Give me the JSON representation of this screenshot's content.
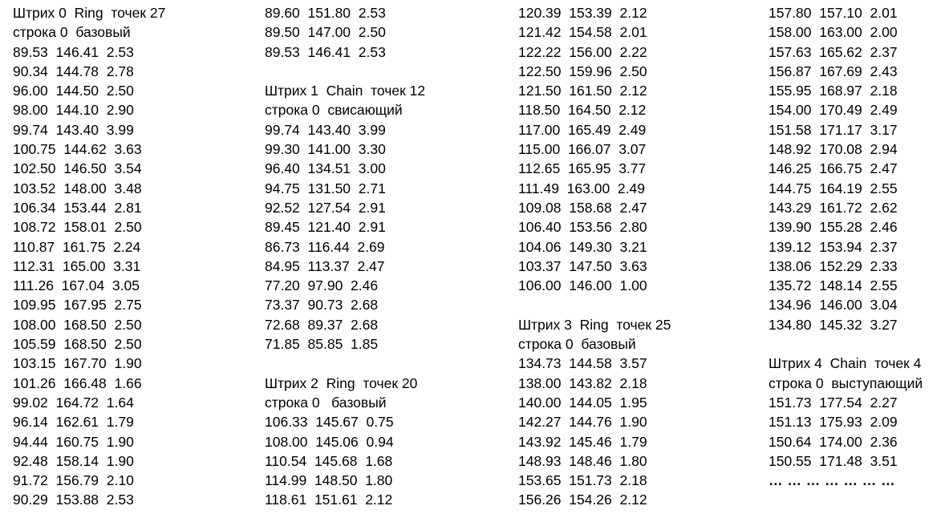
{
  "columns": [
    {
      "lines": [
        "Штрих 0  Ring  точек 27",
        "строка 0  базовый",
        "89.53  146.41  2.53",
        "90.34  144.78  2.78",
        "96.00  144.50  2.50",
        "98.00  144.10  2.90",
        "99.74  143.40  3.99",
        "100.75  144.62  3.63",
        "102.50  146.50  3.54",
        "103.52  148.00  3.48",
        "106.34  153.44  2.81",
        "108.72  158.01  2.50",
        "110.87  161.75  2.24",
        "112.31  165.00  3.31",
        "111.26  167.04  3.05",
        "109.95  167.95  2.75",
        "108.00  168.50  2.50",
        "105.59  168.50  2.50",
        "103.15  167.70  1.90",
        "101.26  166.48  1.66",
        "99.02  164.72  1.64",
        "96.14  162.61  1.79",
        "94.44  160.75  1.90",
        "92.48  158.14  1.90",
        "91.72  156.79  2.10",
        "90.29  153.88  2.53"
      ]
    },
    {
      "lines": [
        "89.60  151.80  2.53",
        "89.50  147.00  2.50",
        "89.53  146.41  2.53",
        "",
        "Штрих 1  Chain  точек 12",
        "строка 0  свисающий",
        "99.74  143.40  3.99",
        "99.30  141.00  3.30",
        "96.40  134.51  3.00",
        "94.75  131.50  2.71",
        "92.52  127.54  2.91",
        "89.45  121.40  2.91",
        "86.73  116.44  2.69",
        "84.95  113.37  2.47",
        "77.20  97.90  2.46",
        "73.37  90.73  2.68",
        "72.68  89.37  2.68",
        "71.85  85.85  1.85",
        "",
        "Штрих 2  Ring  точек 20",
        "строка 0   базовый",
        "106.33  145.67  0.75",
        "108.00  145.06  0.94",
        "110.54  145.68  1.68",
        "114.99  148.50  1.80",
        "118.61  151.61  2.12"
      ]
    },
    {
      "lines": [
        "120.39  153.39  2.12",
        "121.42  154.58  2.01",
        "122.22  156.00  2.22",
        "122.50  159.96  2.50",
        "121.50  161.50  2.12",
        "118.50  164.50  2.12",
        "117.00  165.49  2.49",
        "115.00  166.07  3.07",
        "112.65  165.95  3.77",
        "111.49  163.00  2.49",
        "109.08  158.68  2.47",
        "106.40  153.56  2.80",
        "104.06  149.30  3.21",
        "103.37  147.50  3.63",
        "106.00  146.00  1.00",
        "",
        "Штрих 3  Ring  точек 25",
        "строка 0  базовый",
        "134.73  144.58  3.57",
        "138.00  143.82  2.18",
        "140.00  144.05  1.95",
        "142.27  144.76  1.90",
        "143.92  145.46  1.79",
        "148.93  148.46  1.80",
        "153.65  151.73  2.18",
        "156.26  154.26  2.12"
      ]
    },
    {
      "lines": [
        "157.80  157.10  2.01",
        "158.00  163.00  2.00",
        "157.63  165.62  2.37",
        "156.87  167.69  2.43",
        "155.95  168.97  2.18",
        "154.00  170.49  2.49",
        "151.58  171.17  3.17",
        "148.92  170.08  2.94",
        "146.25  166.75  2.47",
        "144.75  164.19  2.55",
        "143.29  161.72  2.62",
        "139.90  155.28  2.46",
        "139.12  153.94  2.37",
        "138.06  152.29  2.33",
        "135.72  148.14  2.55",
        "134.96  146.00  3.04",
        "134.80  145.32  3.27",
        "",
        "Штрих 4  Chain  точек 4",
        "строка 0  выступающий",
        "151.73  177.54  2.27",
        "151.13  175.93  2.09",
        "150.64  174.00  2.36",
        "150.55  171.48  3.51",
        "… … … … … … …"
      ]
    }
  ]
}
